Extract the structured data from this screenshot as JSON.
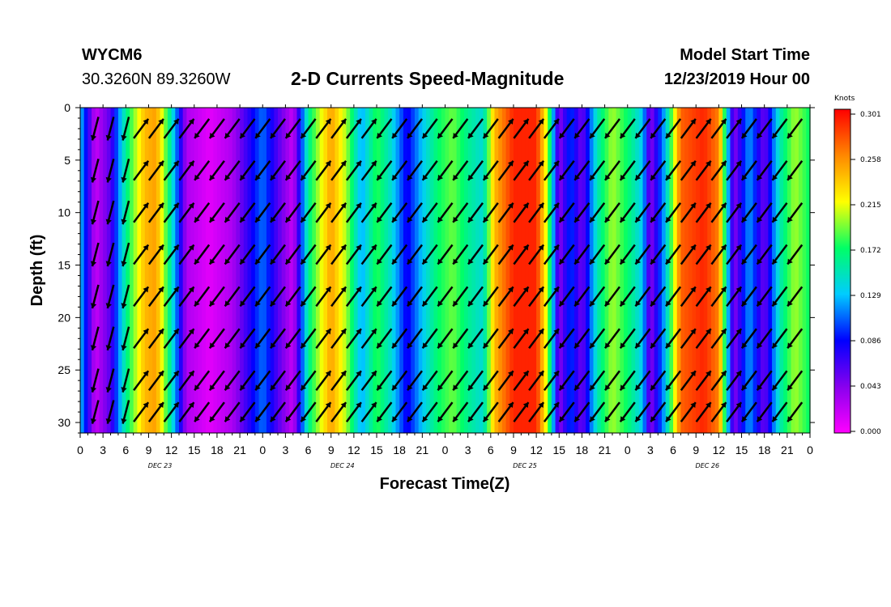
{
  "header": {
    "station": "WYCM6",
    "coords": "30.3260N 89.3260W",
    "title": "2-D Currents Speed-Magnitude",
    "model_start_label": "Model Start Time",
    "model_start_value": "12/23/2019 Hour 00"
  },
  "chart_data": {
    "type": "heatmap",
    "title": "2-D Currents Speed-Magnitude",
    "xlabel": "Forecast Time(Z)",
    "ylabel": "Depth (ft)",
    "x_tick_labels": [
      "0",
      "3",
      "6",
      "9",
      "12",
      "15",
      "18",
      "21",
      "0",
      "3",
      "6",
      "9",
      "12",
      "15",
      "18",
      "21",
      "0",
      "3",
      "6",
      "9",
      "12",
      "15",
      "18",
      "21",
      "0",
      "3",
      "6",
      "9",
      "12",
      "15",
      "18",
      "21",
      "0"
    ],
    "x_range_hours": [
      0,
      96
    ],
    "day_labels": [
      {
        "label": "DEC 23",
        "hour": 10.5
      },
      {
        "label": "DEC 24",
        "hour": 34.5
      },
      {
        "label": "DEC 25",
        "hour": 58.5
      },
      {
        "label": "DEC 26",
        "hour": 82.5
      }
    ],
    "y_ticks": [
      "0",
      "5",
      "10",
      "15",
      "20",
      "25",
      "30"
    ],
    "ylim": [
      0,
      31
    ],
    "y_inverted": true,
    "colorbar": {
      "unit_label": "Knots",
      "labels": [
        "0.301",
        "0.258",
        "0.215",
        "0.172",
        "0.129",
        "0.086",
        "0.043",
        "0.000"
      ],
      "range": [
        0.0,
        0.301
      ],
      "colors": [
        "#ff00ff",
        "#8800ee",
        "#0000ff",
        "#00ccff",
        "#00ff66",
        "#ffff00",
        "#ff8800",
        "#ff0000"
      ]
    },
    "speed_by_hour_knots": [
      {
        "hour": 0,
        "speed": 0.13
      },
      {
        "hour": 2,
        "speed": 0.02
      },
      {
        "hour": 4,
        "speed": 0.06
      },
      {
        "hour": 6,
        "speed": 0.16
      },
      {
        "hour": 8.5,
        "speed": 0.24
      },
      {
        "hour": 10,
        "speed": 0.25
      },
      {
        "hour": 12,
        "speed": 0.15
      },
      {
        "hour": 14,
        "speed": 0.03
      },
      {
        "hour": 17,
        "speed": 0.01
      },
      {
        "hour": 20,
        "speed": 0.03
      },
      {
        "hour": 22,
        "speed": 0.07
      },
      {
        "hour": 24,
        "speed": 0.11
      },
      {
        "hour": 26,
        "speed": 0.06
      },
      {
        "hour": 28,
        "speed": 0.02
      },
      {
        "hour": 30,
        "speed": 0.16
      },
      {
        "hour": 33,
        "speed": 0.25
      },
      {
        "hour": 35,
        "speed": 0.2
      },
      {
        "hour": 37,
        "speed": 0.12
      },
      {
        "hour": 39,
        "speed": 0.18
      },
      {
        "hour": 41,
        "speed": 0.14
      },
      {
        "hour": 43,
        "speed": 0.08
      },
      {
        "hour": 45,
        "speed": 0.13
      },
      {
        "hour": 47,
        "speed": 0.17
      },
      {
        "hour": 49,
        "speed": 0.19
      },
      {
        "hour": 51,
        "speed": 0.16
      },
      {
        "hour": 53,
        "speed": 0.14
      },
      {
        "hour": 54.5,
        "speed": 0.24
      },
      {
        "hour": 57,
        "speed": 0.29
      },
      {
        "hour": 60,
        "speed": 0.29
      },
      {
        "hour": 61.5,
        "speed": 0.2
      },
      {
        "hour": 63,
        "speed": 0.04
      },
      {
        "hour": 64.5,
        "speed": 0.1
      },
      {
        "hour": 66,
        "speed": 0.05
      },
      {
        "hour": 68,
        "speed": 0.15
      },
      {
        "hour": 70,
        "speed": 0.2
      },
      {
        "hour": 72,
        "speed": 0.17
      },
      {
        "hour": 74,
        "speed": 0.13
      },
      {
        "hour": 75,
        "speed": 0.04
      },
      {
        "hour": 77,
        "speed": 0.13
      },
      {
        "hour": 79,
        "speed": 0.27
      },
      {
        "hour": 82,
        "speed": 0.29
      },
      {
        "hour": 84,
        "speed": 0.26
      },
      {
        "hour": 86,
        "speed": 0.04
      },
      {
        "hour": 88,
        "speed": 0.12
      },
      {
        "hour": 90,
        "speed": 0.05
      },
      {
        "hour": 92,
        "speed": 0.15
      },
      {
        "hour": 94,
        "speed": 0.2
      },
      {
        "hour": 96,
        "speed": 0.17
      }
    ],
    "arrow_depths_ft": [
      2,
      6,
      10,
      14,
      18,
      22,
      26,
      29
    ],
    "arrow_hours_sample": [
      {
        "hour": 2,
        "dir": "south-southwest"
      },
      {
        "hour": 10,
        "dir": "northeast"
      },
      {
        "hour": 18,
        "dir": "southwest"
      },
      {
        "hour": 26,
        "dir": "southwest"
      },
      {
        "hour": 34,
        "dir": "northeast"
      },
      {
        "hour": 42,
        "dir": "southwest"
      },
      {
        "hour": 50,
        "dir": "southwest"
      },
      {
        "hour": 58,
        "dir": "northeast"
      },
      {
        "hour": 66,
        "dir": "southwest"
      },
      {
        "hour": 74,
        "dir": "southwest"
      },
      {
        "hour": 82,
        "dir": "northeast"
      },
      {
        "hour": 90,
        "dir": "southwest"
      }
    ],
    "grid": false
  }
}
